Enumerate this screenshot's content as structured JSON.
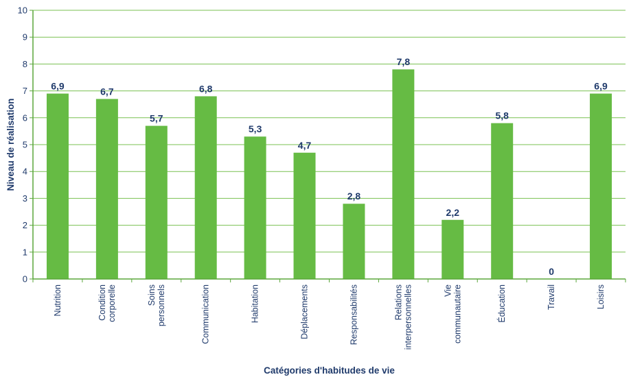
{
  "chart_data": {
    "type": "bar",
    "xlabel": "Catégories d'habitudes de vie",
    "ylabel": "Niveau de réalisation",
    "ylim": [
      0,
      10
    ],
    "yticks": [
      0,
      1,
      2,
      3,
      4,
      5,
      6,
      7,
      8,
      9,
      10
    ],
    "grid": true,
    "categories": [
      [
        "Nutrition"
      ],
      [
        "Condition",
        "corporelle"
      ],
      [
        "Soins",
        "personnels"
      ],
      [
        "Communication"
      ],
      [
        "Habitation"
      ],
      [
        "Déplacements"
      ],
      [
        "Responsabilités"
      ],
      [
        "Relations",
        "interpersonnelles"
      ],
      [
        "Vie",
        "communautaire"
      ],
      [
        "Éducation"
      ],
      [
        "Travail"
      ],
      [
        "Loisirs"
      ]
    ],
    "values": [
      6.9,
      6.7,
      5.7,
      6.8,
      5.3,
      4.7,
      2.8,
      7.8,
      2.2,
      5.8,
      0,
      6.9
    ],
    "value_labels": [
      "6,9",
      "6,7",
      "5,7",
      "6,8",
      "5,3",
      "4,7",
      "2,8",
      "7,8",
      "2,2",
      "5,8",
      "0",
      "6,9"
    ],
    "colors": {
      "bar": "#66bb44",
      "grid": "#78c050",
      "axis": "#5aa63a",
      "text": "#1f3a6b"
    }
  }
}
